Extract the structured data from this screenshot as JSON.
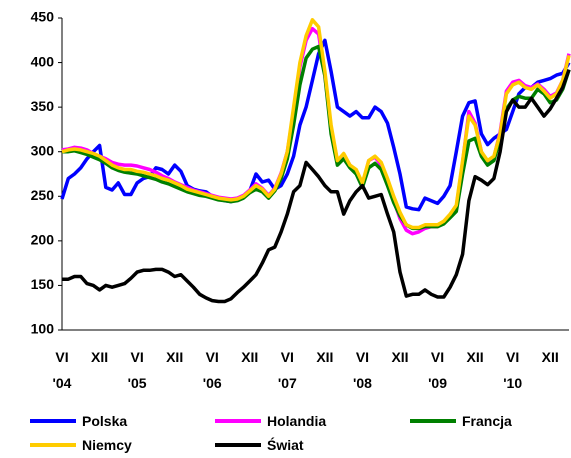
{
  "chart_data": {
    "type": "line",
    "categories": [
      "VI\n'04",
      null,
      null,
      null,
      null,
      null,
      "XII",
      null,
      null,
      null,
      null,
      null,
      "VI\n'05",
      null,
      null,
      null,
      null,
      null,
      "XII",
      null,
      null,
      null,
      null,
      null,
      "VI\n'06",
      null,
      null,
      null,
      null,
      null,
      "XII",
      null,
      null,
      null,
      null,
      null,
      "VI\n'07",
      null,
      null,
      null,
      null,
      null,
      "XII",
      null,
      null,
      null,
      null,
      null,
      "VI\n'08",
      null,
      null,
      null,
      null,
      null,
      "XII",
      null,
      null,
      null,
      null,
      null,
      "VI\n'09",
      null,
      null,
      null,
      null,
      null,
      "XII",
      null,
      null,
      null,
      null,
      null,
      "VI\n'10",
      null,
      null,
      null,
      null,
      null,
      "XII",
      null,
      null,
      null
    ],
    "series": [
      {
        "name": "Polska",
        "color": "#0000ff",
        "values": [
          247,
          270,
          275,
          282,
          292,
          300,
          307,
          260,
          257,
          265,
          252,
          252,
          265,
          270,
          272,
          282,
          280,
          275,
          285,
          278,
          262,
          258,
          256,
          255,
          250,
          248,
          245,
          244,
          246,
          250,
          256,
          275,
          266,
          268,
          258,
          262,
          275,
          295,
          330,
          350,
          380,
          410,
          425,
          390,
          350,
          345,
          340,
          345,
          338,
          338,
          350,
          345,
          332,
          305,
          275,
          238,
          236,
          235,
          248,
          245,
          242,
          250,
          262,
          300,
          340,
          355,
          357,
          320,
          308,
          315,
          320,
          325,
          345,
          365,
          372,
          372,
          378,
          380,
          382,
          386,
          388,
          400
        ]
      },
      {
        "name": "Holandia",
        "color": "#ff00ff",
        "values": [
          302,
          303,
          305,
          304,
          302,
          298,
          295,
          292,
          288,
          286,
          285,
          285,
          284,
          282,
          280,
          277,
          273,
          270,
          266,
          263,
          260,
          257,
          255,
          253,
          251,
          249,
          248,
          247,
          248,
          251,
          257,
          264,
          259,
          251,
          259,
          276,
          300,
          345,
          395,
          425,
          438,
          432,
          385,
          325,
          290,
          297,
          285,
          278,
          262,
          290,
          294,
          285,
          266,
          245,
          225,
          212,
          208,
          210,
          214,
          216,
          216,
          220,
          228,
          238,
          288,
          345,
          332,
          300,
          288,
          294,
          322,
          368,
          378,
          380,
          374,
          372,
          376,
          370,
          362,
          366,
          380,
          410
        ]
      },
      {
        "name": "Francja",
        "color": "#008000",
        "values": [
          300,
          300,
          301,
          299,
          297,
          294,
          291,
          287,
          282,
          279,
          277,
          276,
          275,
          273,
          271,
          269,
          266,
          264,
          261,
          258,
          255,
          253,
          251,
          250,
          248,
          246,
          245,
          244,
          245,
          248,
          254,
          258,
          255,
          248,
          256,
          270,
          292,
          330,
          375,
          405,
          415,
          418,
          385,
          320,
          285,
          292,
          282,
          275,
          260,
          282,
          287,
          280,
          262,
          243,
          228,
          218,
          214,
          214,
          216,
          216,
          216,
          219,
          226,
          233,
          275,
          312,
          315,
          295,
          285,
          290,
          315,
          348,
          358,
          362,
          360,
          360,
          370,
          365,
          355,
          358,
          370,
          392
        ]
      },
      {
        "name": "Niemcy",
        "color": "#ffcc00",
        "values": [
          300,
          302,
          303,
          302,
          300,
          298,
          295,
          290,
          285,
          282,
          280,
          280,
          278,
          277,
          275,
          273,
          270,
          268,
          265,
          262,
          258,
          256,
          254,
          252,
          250,
          248,
          247,
          246,
          247,
          250,
          256,
          262,
          258,
          250,
          258,
          275,
          300,
          350,
          400,
          430,
          448,
          440,
          390,
          330,
          290,
          298,
          285,
          280,
          265,
          290,
          295,
          288,
          270,
          250,
          232,
          218,
          215,
          215,
          218,
          218,
          218,
          222,
          230,
          240,
          290,
          340,
          330,
          300,
          290,
          295,
          320,
          365,
          375,
          378,
          372,
          370,
          375,
          368,
          360,
          365,
          380,
          408
        ]
      },
      {
        "name": "Świat",
        "color": "#000000",
        "values": [
          157,
          157,
          160,
          160,
          152,
          150,
          145,
          150,
          148,
          150,
          152,
          158,
          165,
          167,
          167,
          168,
          168,
          165,
          160,
          162,
          155,
          148,
          140,
          136,
          133,
          132,
          132,
          135,
          142,
          148,
          155,
          162,
          175,
          190,
          193,
          210,
          230,
          255,
          262,
          288,
          280,
          272,
          262,
          255,
          255,
          230,
          245,
          255,
          262,
          248,
          250,
          252,
          230,
          210,
          165,
          138,
          140,
          140,
          145,
          140,
          137,
          137,
          148,
          162,
          185,
          245,
          272,
          268,
          263,
          270,
          300,
          345,
          358,
          350,
          350,
          360,
          350,
          340,
          348,
          360,
          372,
          392
        ]
      }
    ],
    "ylim": [
      100,
      450
    ],
    "yticks": [
      100,
      150,
      200,
      250,
      300,
      350,
      400,
      450
    ],
    "legend": "bottom"
  }
}
